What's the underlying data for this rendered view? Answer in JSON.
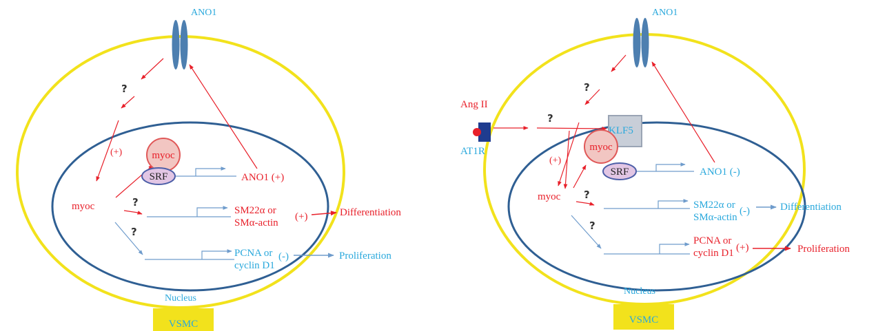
{
  "colors": {
    "membrane": "#f2e21c",
    "nucleus": "#2f5f93",
    "channel": "#4d7fb0",
    "activation": "#e8202a",
    "inhibition": "#29a8dc",
    "gene_line": "#6f9ccc",
    "myoc_fill": "#f2c6c2",
    "srf_fill": "#e2c6e4",
    "klf5_fill": "#c8ced8",
    "vsmc_box": "#f2e21c",
    "at1r": "#1f3c8f",
    "ang_ii": "#e8202a"
  },
  "left_panel": {
    "channel_label": "ANO1",
    "question_marks": [
      "?",
      "?",
      "?"
    ],
    "plus_sign": "(+)",
    "myoc_cytoplasm": "myoc",
    "myoc_complex": "myoc",
    "srf": "SRF",
    "ano1_gene": "ANO1 (+)",
    "sm22_line1": "SM22α or",
    "sm22_line2": "SMα-actin",
    "sm22_sign": "(+)",
    "differentiation": "Differentiation",
    "pcna_line1": "PCNA  or",
    "pcna_line2": "cyclin D1",
    "pcna_sign": "(-)",
    "proliferation": "Proliferation",
    "nucleus": "Nucleus",
    "cell": "VSMC"
  },
  "right_panel": {
    "channel_label": "ANO1",
    "question_marks": [
      "?",
      "?",
      "?",
      "?"
    ],
    "ang_ii": "Ang II",
    "at1r": "AT1R",
    "klf5": "KLF5",
    "plus_sign": "(+)",
    "myoc_cytoplasm": "myoc",
    "myoc_complex": "myoc",
    "srf": "SRF",
    "ano1_gene": "ANO1 (-)",
    "sm22_line1": "SM22α or",
    "sm22_line2": "SMα-actin",
    "sm22_sign": "(-)",
    "differentiation": "Differentiation",
    "pcna_line1": "PCNA  or",
    "pcna_line2": "cyclin D1",
    "pcna_sign": "(+)",
    "proliferation": "Proliferation",
    "nucleus": "Nucleus",
    "cell": "VSMC"
  }
}
